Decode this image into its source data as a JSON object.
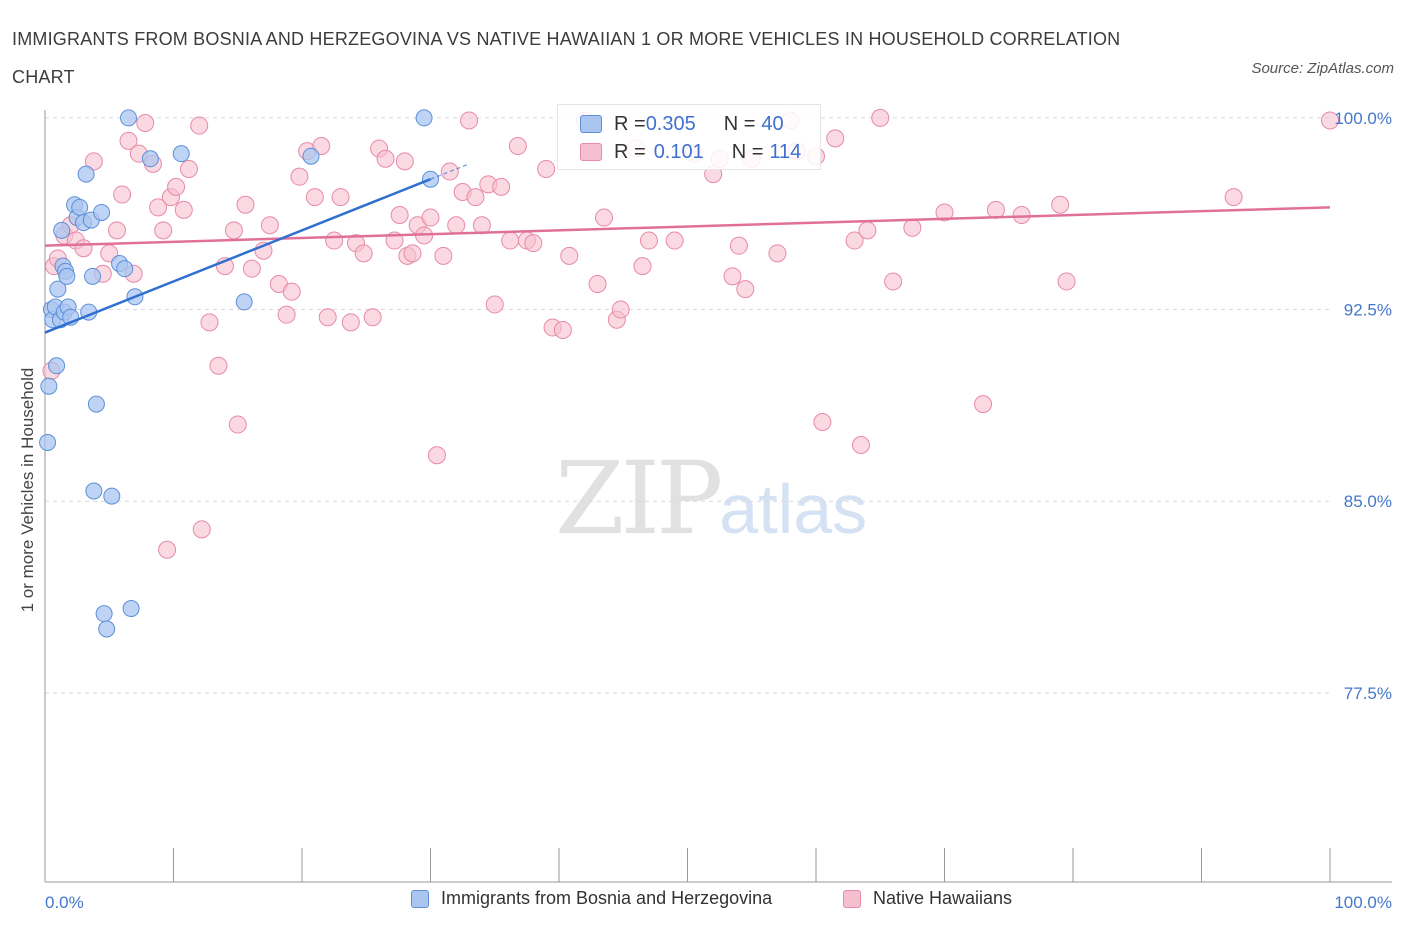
{
  "header": {
    "title": "IMMIGRANTS FROM BOSNIA AND HERZEGOVINA VS NATIVE HAWAIIAN 1 OR MORE VEHICLES IN HOUSEHOLD CORRELATION CHART",
    "source": "Source: ZipAtlas.com"
  },
  "watermark": {
    "zip": "ZIP",
    "atlas": "atlas"
  },
  "stats": {
    "row1": {
      "r_label": "R = ",
      "r_value": "0.305",
      "n_label": "N = ",
      "n_value": "40"
    },
    "row2": {
      "r_label": "R = ",
      "r_value": "0.101",
      "n_label": "N = ",
      "n_value": "114"
    }
  },
  "legend": {
    "series1": "Immigrants from Bosnia and Herzegovina",
    "series2": "Native Hawaiians"
  },
  "colors": {
    "blue_fill": "#aac6f0",
    "blue_stroke": "#5d8fd8",
    "blue_line": "#2f6fcf",
    "pink_fill": "#f6bfd0",
    "pink_stroke": "#e88aa8",
    "pink_line": "#e0709a",
    "tick_text": "#4477cc",
    "grid": "#d9d9d9"
  },
  "chart_data": {
    "type": "scatter",
    "title": "IMMIGRANTS FROM BOSNIA AND HERZEGOVINA VS NATIVE HAWAIIAN 1 OR MORE VEHICLES IN HOUSEHOLD CORRELATION CHART",
    "xlabel": "",
    "ylabel": "1 or more Vehicles in Household",
    "xlim": [
      0,
      100
    ],
    "ylim": [
      70.1,
      100.7
    ],
    "x_tick_labels": [
      "0.0%",
      "100.0%"
    ],
    "y_ticks": [
      100.0,
      92.5,
      85.0,
      77.5
    ],
    "y_tick_labels": [
      "100.0%",
      "92.5%",
      "85.0%",
      "77.5%"
    ],
    "grid": "horizontal dashed",
    "legend_position": "bottom-center",
    "series": [
      {
        "name": "Immigrants from Bosnia and Herzegovina",
        "r": 0.305,
        "n": 40,
        "trend": {
          "x": [
            0,
            30
          ],
          "y": [
            91.6,
            97.6
          ],
          "dashed_to": [
            33,
            98.2
          ]
        },
        "points": [
          [
            0.2,
            87.3
          ],
          [
            0.3,
            89.5
          ],
          [
            0.5,
            92.5
          ],
          [
            0.6,
            92.1
          ],
          [
            0.8,
            92.6
          ],
          [
            0.9,
            90.3
          ],
          [
            1.0,
            93.3
          ],
          [
            1.2,
            92.1
          ],
          [
            1.3,
            95.6
          ],
          [
            1.4,
            94.2
          ],
          [
            1.5,
            92.4
          ],
          [
            1.6,
            94.0
          ],
          [
            1.7,
            93.8
          ],
          [
            1.8,
            92.6
          ],
          [
            2.0,
            92.2
          ],
          [
            2.3,
            96.6
          ],
          [
            2.5,
            96.1
          ],
          [
            2.7,
            96.5
          ],
          [
            3.0,
            95.9
          ],
          [
            3.2,
            97.8
          ],
          [
            3.4,
            92.4
          ],
          [
            3.6,
            96.0
          ],
          [
            3.7,
            93.8
          ],
          [
            3.8,
            85.4
          ],
          [
            4.0,
            88.8
          ],
          [
            4.4,
            96.3
          ],
          [
            4.6,
            80.6
          ],
          [
            4.8,
            80.0
          ],
          [
            5.2,
            85.2
          ],
          [
            5.8,
            94.3
          ],
          [
            6.2,
            94.1
          ],
          [
            6.5,
            100.0
          ],
          [
            6.7,
            80.8
          ],
          [
            7.0,
            93.0
          ],
          [
            8.2,
            98.4
          ],
          [
            10.6,
            98.6
          ],
          [
            15.5,
            92.8
          ],
          [
            20.7,
            98.5
          ],
          [
            29.5,
            100.0
          ],
          [
            30.0,
            97.6
          ]
        ]
      },
      {
        "name": "Native Hawaiians",
        "r": 0.101,
        "n": 114,
        "trend": {
          "x": [
            0,
            100
          ],
          "y": [
            95.0,
            96.5
          ]
        },
        "points": [
          [
            0.5,
            90.1
          ],
          [
            0.7,
            94.2
          ],
          [
            1.0,
            94.5
          ],
          [
            1.5,
            95.4
          ],
          [
            2.0,
            95.8
          ],
          [
            2.4,
            95.2
          ],
          [
            3.0,
            94.9
          ],
          [
            3.8,
            98.3
          ],
          [
            4.5,
            93.9
          ],
          [
            5.0,
            94.7
          ],
          [
            5.6,
            95.6
          ],
          [
            6.0,
            97.0
          ],
          [
            6.5,
            99.1
          ],
          [
            7.3,
            98.6
          ],
          [
            7.8,
            99.8
          ],
          [
            8.4,
            98.2
          ],
          [
            8.8,
            96.5
          ],
          [
            9.2,
            95.6
          ],
          [
            9.8,
            96.9
          ],
          [
            10.2,
            97.3
          ],
          [
            10.8,
            96.4
          ],
          [
            11.2,
            98.0
          ],
          [
            12.0,
            99.7
          ],
          [
            12.8,
            92.0
          ],
          [
            13.5,
            90.3
          ],
          [
            14.0,
            94.2
          ],
          [
            14.7,
            95.6
          ],
          [
            15.0,
            88.0
          ],
          [
            15.6,
            96.6
          ],
          [
            16.1,
            94.1
          ],
          [
            17.0,
            94.8
          ],
          [
            17.5,
            95.8
          ],
          [
            18.2,
            93.5
          ],
          [
            18.8,
            92.3
          ],
          [
            19.2,
            93.2
          ],
          [
            19.8,
            97.7
          ],
          [
            20.4,
            98.7
          ],
          [
            21.0,
            96.9
          ],
          [
            21.5,
            98.9
          ],
          [
            22.0,
            92.2
          ],
          [
            22.5,
            95.2
          ],
          [
            23.0,
            96.9
          ],
          [
            23.8,
            92.0
          ],
          [
            24.2,
            95.1
          ],
          [
            24.8,
            94.7
          ],
          [
            25.5,
            92.2
          ],
          [
            26.0,
            98.8
          ],
          [
            26.5,
            98.4
          ],
          [
            27.2,
            95.2
          ],
          [
            27.6,
            96.2
          ],
          [
            28.2,
            94.6
          ],
          [
            28.6,
            94.7
          ],
          [
            29.0,
            95.8
          ],
          [
            29.5,
            95.4
          ],
          [
            30.0,
            96.1
          ],
          [
            30.5,
            86.8
          ],
          [
            31.0,
            94.6
          ],
          [
            31.5,
            97.9
          ],
          [
            32.0,
            95.8
          ],
          [
            32.5,
            97.1
          ],
          [
            33.0,
            99.9
          ],
          [
            33.5,
            96.9
          ],
          [
            34.0,
            95.8
          ],
          [
            34.5,
            97.4
          ],
          [
            35.0,
            92.7
          ],
          [
            35.5,
            97.3
          ],
          [
            36.2,
            95.2
          ],
          [
            36.8,
            98.9
          ],
          [
            37.5,
            95.2
          ],
          [
            38.0,
            95.1
          ],
          [
            39.0,
            98.0
          ],
          [
            39.5,
            91.8
          ],
          [
            40.3,
            91.7
          ],
          [
            40.8,
            94.6
          ],
          [
            42.0,
            99.9
          ],
          [
            43.0,
            93.5
          ],
          [
            43.5,
            96.1
          ],
          [
            44.5,
            92.1
          ],
          [
            44.8,
            92.5
          ],
          [
            46.0,
            98.8
          ],
          [
            46.5,
            94.2
          ],
          [
            47.0,
            95.2
          ],
          [
            49.0,
            95.2
          ],
          [
            50.5,
            98.6
          ],
          [
            52.0,
            97.8
          ],
          [
            52.5,
            98.4
          ],
          [
            53.5,
            93.8
          ],
          [
            54.5,
            93.3
          ],
          [
            55.0,
            98.4
          ],
          [
            57.0,
            94.7
          ],
          [
            58.5,
            98.7
          ],
          [
            58.0,
            99.9
          ],
          [
            60.0,
            98.5
          ],
          [
            60.5,
            88.1
          ],
          [
            61.5,
            99.2
          ],
          [
            63.0,
            95.2
          ],
          [
            63.5,
            87.2
          ],
          [
            64.0,
            95.6
          ],
          [
            65.0,
            100.0
          ],
          [
            66.0,
            93.6
          ],
          [
            67.5,
            95.7
          ],
          [
            70.0,
            96.3
          ],
          [
            73.0,
            88.8
          ],
          [
            74.0,
            96.4
          ],
          [
            76.0,
            96.2
          ],
          [
            79.0,
            96.6
          ],
          [
            79.5,
            93.6
          ],
          [
            92.5,
            96.9
          ],
          [
            100.0,
            99.9
          ],
          [
            9.5,
            83.1
          ],
          [
            12.2,
            83.9
          ],
          [
            6.9,
            93.9
          ],
          [
            28.0,
            98.3
          ],
          [
            54.0,
            95.0
          ]
        ]
      }
    ]
  }
}
